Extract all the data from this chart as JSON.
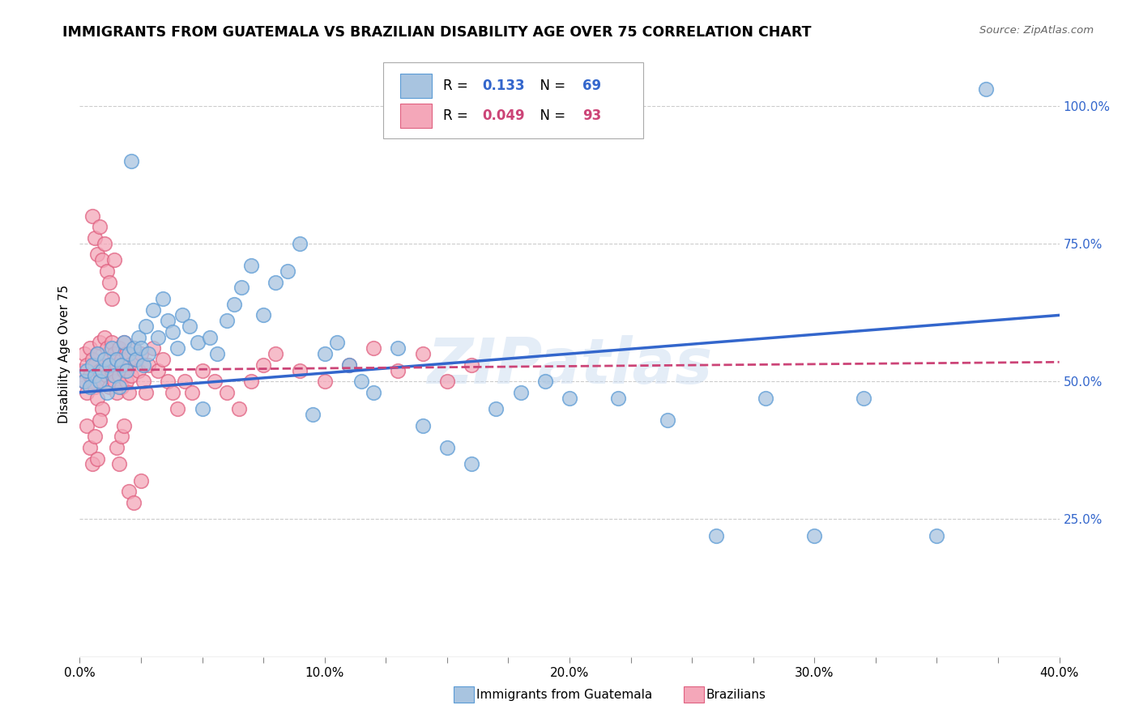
{
  "title": "IMMIGRANTS FROM GUATEMALA VS BRAZILIAN DISABILITY AGE OVER 75 CORRELATION CHART",
  "source": "Source: ZipAtlas.com",
  "ylabel": "Disability Age Over 75",
  "watermark": "ZIPatlas",
  "legend_label1": "Immigrants from Guatemala",
  "legend_label2": "Brazilians",
  "R1": 0.133,
  "N1": 69,
  "R2": 0.049,
  "N2": 93,
  "color1": "#a8c4e0",
  "color1_dark": "#5b9bd5",
  "color2": "#f4a7b9",
  "color2_dark": "#e06080",
  "line1_color": "#3366cc",
  "line2_color": "#cc4477",
  "background_color": "#ffffff",
  "grid_color": "#cccccc",
  "xlim": [
    0.0,
    0.4
  ],
  "ylim": [
    0.0,
    1.1
  ],
  "xtick_labels": [
    "0.0%",
    "",
    "",
    "",
    "10.0%",
    "",
    "",
    "",
    "20.0%",
    "",
    "",
    "",
    "30.0%",
    "",
    "",
    "",
    "40.0%"
  ],
  "xtick_vals": [
    0.0,
    0.025,
    0.05,
    0.075,
    0.1,
    0.125,
    0.15,
    0.175,
    0.2,
    0.225,
    0.25,
    0.275,
    0.3,
    0.325,
    0.35,
    0.375,
    0.4
  ],
  "ytick_labels_right": [
    "25.0%",
    "50.0%",
    "75.0%",
    "100.0%"
  ],
  "ytick_vals_right": [
    0.25,
    0.5,
    0.75,
    1.0
  ],
  "scatter1_x": [
    0.002,
    0.003,
    0.004,
    0.005,
    0.006,
    0.007,
    0.008,
    0.009,
    0.01,
    0.011,
    0.012,
    0.013,
    0.014,
    0.015,
    0.016,
    0.017,
    0.018,
    0.019,
    0.02,
    0.021,
    0.022,
    0.023,
    0.024,
    0.025,
    0.026,
    0.027,
    0.028,
    0.03,
    0.032,
    0.034,
    0.036,
    0.038,
    0.04,
    0.042,
    0.045,
    0.048,
    0.05,
    0.053,
    0.056,
    0.06,
    0.063,
    0.066,
    0.07,
    0.075,
    0.08,
    0.085,
    0.09,
    0.095,
    0.1,
    0.105,
    0.11,
    0.115,
    0.12,
    0.13,
    0.14,
    0.15,
    0.16,
    0.17,
    0.18,
    0.19,
    0.2,
    0.22,
    0.24,
    0.26,
    0.28,
    0.3,
    0.32,
    0.35,
    0.37
  ],
  "scatter1_y": [
    0.5,
    0.52,
    0.49,
    0.53,
    0.51,
    0.55,
    0.5,
    0.52,
    0.54,
    0.48,
    0.53,
    0.56,
    0.51,
    0.54,
    0.49,
    0.53,
    0.57,
    0.52,
    0.55,
    0.9,
    0.56,
    0.54,
    0.58,
    0.56,
    0.53,
    0.6,
    0.55,
    0.63,
    0.58,
    0.65,
    0.61,
    0.59,
    0.56,
    0.62,
    0.6,
    0.57,
    0.45,
    0.58,
    0.55,
    0.61,
    0.64,
    0.67,
    0.71,
    0.62,
    0.68,
    0.7,
    0.75,
    0.44,
    0.55,
    0.57,
    0.53,
    0.5,
    0.48,
    0.56,
    0.42,
    0.38,
    0.35,
    0.45,
    0.48,
    0.5,
    0.47,
    0.47,
    0.43,
    0.22,
    0.47,
    0.22,
    0.47,
    0.22,
    1.03
  ],
  "scatter2_x": [
    0.001,
    0.002,
    0.002,
    0.003,
    0.003,
    0.004,
    0.004,
    0.005,
    0.005,
    0.006,
    0.006,
    0.007,
    0.007,
    0.008,
    0.008,
    0.009,
    0.009,
    0.01,
    0.01,
    0.011,
    0.011,
    0.012,
    0.012,
    0.013,
    0.013,
    0.014,
    0.014,
    0.015,
    0.015,
    0.016,
    0.016,
    0.017,
    0.017,
    0.018,
    0.018,
    0.019,
    0.019,
    0.02,
    0.02,
    0.021,
    0.022,
    0.023,
    0.024,
    0.025,
    0.026,
    0.027,
    0.028,
    0.03,
    0.032,
    0.034,
    0.036,
    0.038,
    0.04,
    0.043,
    0.046,
    0.05,
    0.055,
    0.06,
    0.065,
    0.07,
    0.075,
    0.08,
    0.09,
    0.1,
    0.11,
    0.12,
    0.13,
    0.14,
    0.15,
    0.16,
    0.005,
    0.006,
    0.007,
    0.008,
    0.009,
    0.01,
    0.011,
    0.012,
    0.013,
    0.014,
    0.003,
    0.004,
    0.005,
    0.006,
    0.007,
    0.008,
    0.015,
    0.016,
    0.017,
    0.018,
    0.02,
    0.022,
    0.025
  ],
  "scatter2_y": [
    0.52,
    0.5,
    0.55,
    0.48,
    0.53,
    0.51,
    0.56,
    0.5,
    0.54,
    0.49,
    0.53,
    0.55,
    0.47,
    0.52,
    0.57,
    0.5,
    0.45,
    0.53,
    0.58,
    0.51,
    0.56,
    0.54,
    0.49,
    0.52,
    0.57,
    0.5,
    0.55,
    0.53,
    0.48,
    0.51,
    0.56,
    0.54,
    0.49,
    0.52,
    0.57,
    0.5,
    0.55,
    0.53,
    0.48,
    0.51,
    0.56,
    0.54,
    0.52,
    0.55,
    0.5,
    0.48,
    0.53,
    0.56,
    0.52,
    0.54,
    0.5,
    0.48,
    0.45,
    0.5,
    0.48,
    0.52,
    0.5,
    0.48,
    0.45,
    0.5,
    0.53,
    0.55,
    0.52,
    0.5,
    0.53,
    0.56,
    0.52,
    0.55,
    0.5,
    0.53,
    0.8,
    0.76,
    0.73,
    0.78,
    0.72,
    0.75,
    0.7,
    0.68,
    0.65,
    0.72,
    0.42,
    0.38,
    0.35,
    0.4,
    0.36,
    0.43,
    0.38,
    0.35,
    0.4,
    0.42,
    0.3,
    0.28,
    0.32
  ]
}
